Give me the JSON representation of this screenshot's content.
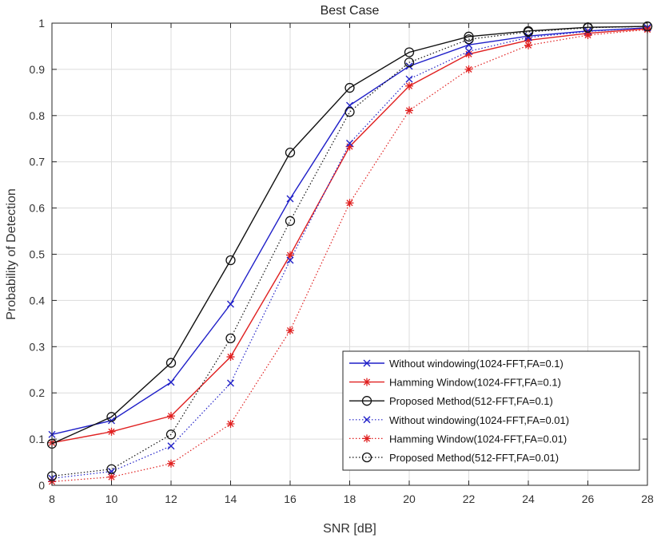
{
  "chart_data": {
    "type": "line",
    "title": "Best Case",
    "xlabel": "SNR [dB]",
    "ylabel": "Probability of Detection",
    "xlim": [
      8,
      28
    ],
    "ylim": [
      0,
      1
    ],
    "xticks": [
      "8",
      "10",
      "12",
      "14",
      "16",
      "18",
      "20",
      "22",
      "24",
      "26",
      "28"
    ],
    "yticks": [
      "0",
      "0.1",
      "0.2",
      "0.3",
      "0.4",
      "0.5",
      "0.6",
      "0.7",
      "0.8",
      "0.9",
      "1"
    ],
    "grid": true,
    "legend_position": "bottom-right",
    "x": [
      8,
      10,
      12,
      14,
      16,
      18,
      20,
      22,
      24,
      26,
      28
    ],
    "series": [
      {
        "name": "Without windowing(1024-FFT,FA=0.1)",
        "color": "#1f1fc8",
        "marker": "x",
        "line": "solid",
        "values": [
          0.11,
          0.14,
          0.223,
          0.392,
          0.62,
          0.822,
          0.907,
          0.953,
          0.972,
          0.983,
          0.99
        ]
      },
      {
        "name": "Hamming Window(1024-FFT,FA=0.1)",
        "color": "#e02020",
        "marker": "asterisk",
        "line": "solid",
        "values": [
          0.092,
          0.116,
          0.15,
          0.278,
          0.498,
          0.733,
          0.864,
          0.933,
          0.963,
          0.978,
          0.988
        ]
      },
      {
        "name": "Proposed Method(512-FFT,FA=0.1)",
        "color": "#111111",
        "marker": "circle",
        "line": "solid",
        "values": [
          0.09,
          0.148,
          0.265,
          0.487,
          0.72,
          0.86,
          0.937,
          0.971,
          0.983,
          0.991,
          0.993
        ]
      },
      {
        "name": "Without windowing(1024-FFT,FA=0.01)",
        "color": "#1f1fc8",
        "marker": "x",
        "line": "dotted",
        "values": [
          0.015,
          0.03,
          0.085,
          0.221,
          0.487,
          0.74,
          0.879,
          0.939,
          0.969,
          0.982,
          0.99
        ]
      },
      {
        "name": "Hamming Window(1024-FFT,FA=0.01)",
        "color": "#e02020",
        "marker": "asterisk",
        "line": "dotted",
        "values": [
          0.008,
          0.018,
          0.047,
          0.133,
          0.335,
          0.611,
          0.811,
          0.9,
          0.952,
          0.974,
          0.986
        ]
      },
      {
        "name": "Proposed Method(512-FFT,FA=0.01)",
        "color": "#111111",
        "marker": "circle",
        "line": "dotted",
        "values": [
          0.02,
          0.035,
          0.11,
          0.318,
          0.572,
          0.808,
          0.915,
          0.965,
          0.981,
          0.99,
          0.993
        ]
      }
    ]
  }
}
